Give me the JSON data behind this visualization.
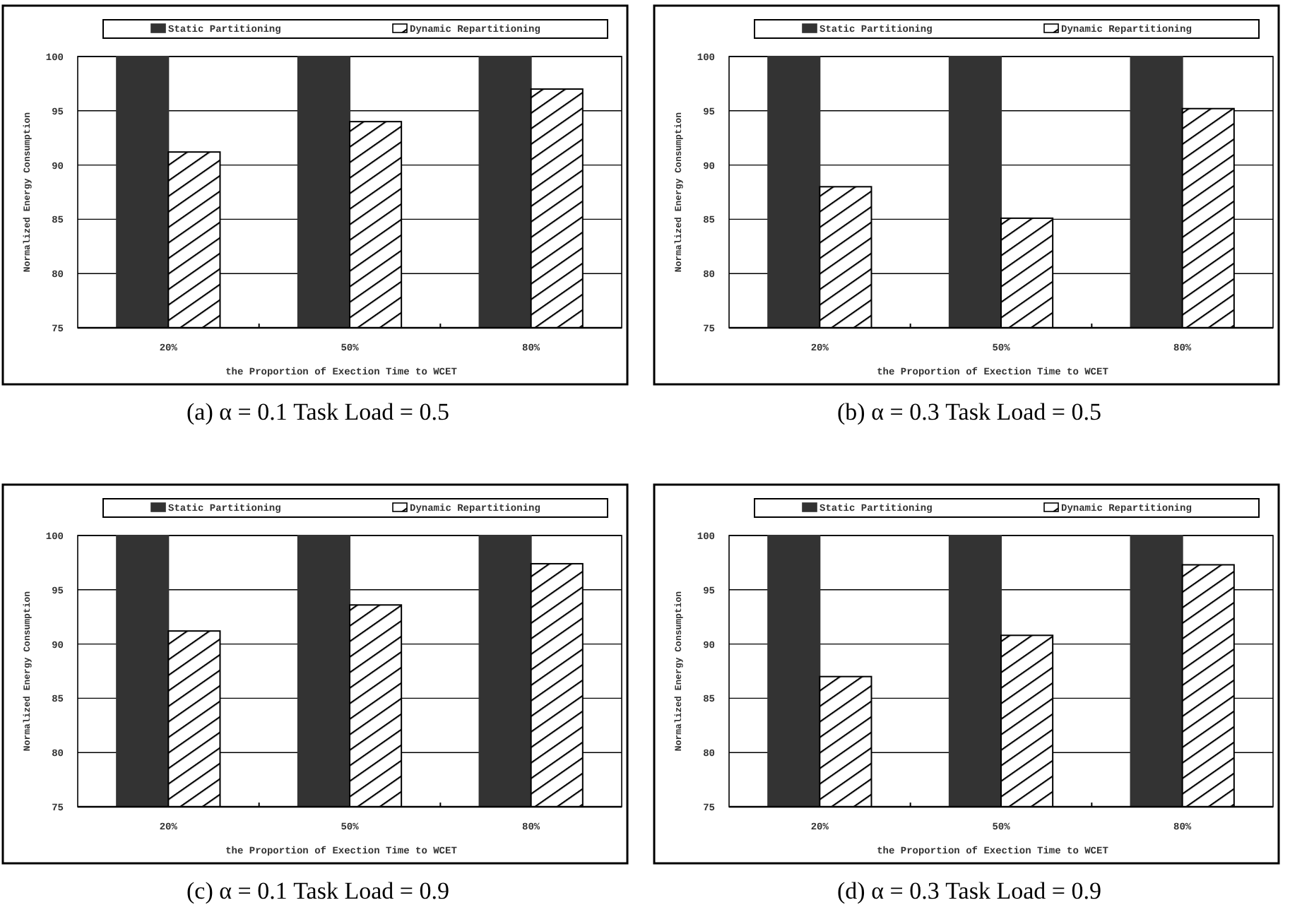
{
  "chart_data": [
    {
      "type": "bar",
      "title": "(a) α = 0.1 Task Load = 0.5",
      "xlabel": "the Proportion of Exection Time to WCET",
      "ylabel": "Normalized Energy Consumption",
      "categories": [
        "20%",
        "50%",
        "80%"
      ],
      "series": [
        {
          "name": "Static Partitioning",
          "color": "#333333",
          "values": [
            100,
            100,
            100
          ]
        },
        {
          "name": "Dynamic Repartitioning",
          "color": "#000000",
          "values": [
            91.2,
            94.0,
            97.0
          ]
        }
      ],
      "ylim": [
        75,
        100
      ],
      "yticks": [
        75,
        80,
        85,
        90,
        95,
        100
      ],
      "grid": "y",
      "legend": "top"
    },
    {
      "type": "bar",
      "title": "(b) α = 0.3 Task Load = 0.5",
      "xlabel": "the Proportion of Exection Time to WCET",
      "ylabel": "Normalized Energy Consumption",
      "categories": [
        "20%",
        "50%",
        "80%"
      ],
      "series": [
        {
          "name": "Static Partitioning",
          "color": "#333333",
          "values": [
            100,
            100,
            100
          ]
        },
        {
          "name": "Dynamic Repartitioning",
          "color": "#000000",
          "values": [
            88.0,
            85.1,
            95.2
          ]
        }
      ],
      "ylim": [
        75,
        100
      ],
      "yticks": [
        75,
        80,
        85,
        90,
        95,
        100
      ],
      "grid": "y",
      "legend": "top"
    },
    {
      "type": "bar",
      "title": "(c) α = 0.1 Task Load = 0.9",
      "xlabel": "the Proportion of Exection Time to WCET",
      "ylabel": "Normalized Energy Consumption",
      "categories": [
        "20%",
        "50%",
        "80%"
      ],
      "series": [
        {
          "name": "Static Partitioning",
          "color": "#333333",
          "values": [
            100,
            100,
            100
          ]
        },
        {
          "name": "Dynamic Repartitioning",
          "color": "#000000",
          "values": [
            91.2,
            93.6,
            97.4
          ]
        }
      ],
      "ylim": [
        75,
        100
      ],
      "yticks": [
        75,
        80,
        85,
        90,
        95,
        100
      ],
      "grid": "y",
      "legend": "top"
    },
    {
      "type": "bar",
      "title": "(d) α = 0.3 Task Load = 0.9",
      "xlabel": "the Proportion of Exection Time to WCET",
      "ylabel": "Normalized Energy Consumption",
      "categories": [
        "20%",
        "50%",
        "80%"
      ],
      "series": [
        {
          "name": "Static Partitioning",
          "color": "#333333",
          "values": [
            100,
            100,
            100
          ]
        },
        {
          "name": "Dynamic Repartitioning",
          "color": "#000000",
          "values": [
            87.0,
            90.8,
            97.3
          ]
        }
      ],
      "ylim": [
        75,
        100
      ],
      "yticks": [
        75,
        80,
        85,
        90,
        95,
        100
      ],
      "grid": "y",
      "legend": "top"
    }
  ]
}
